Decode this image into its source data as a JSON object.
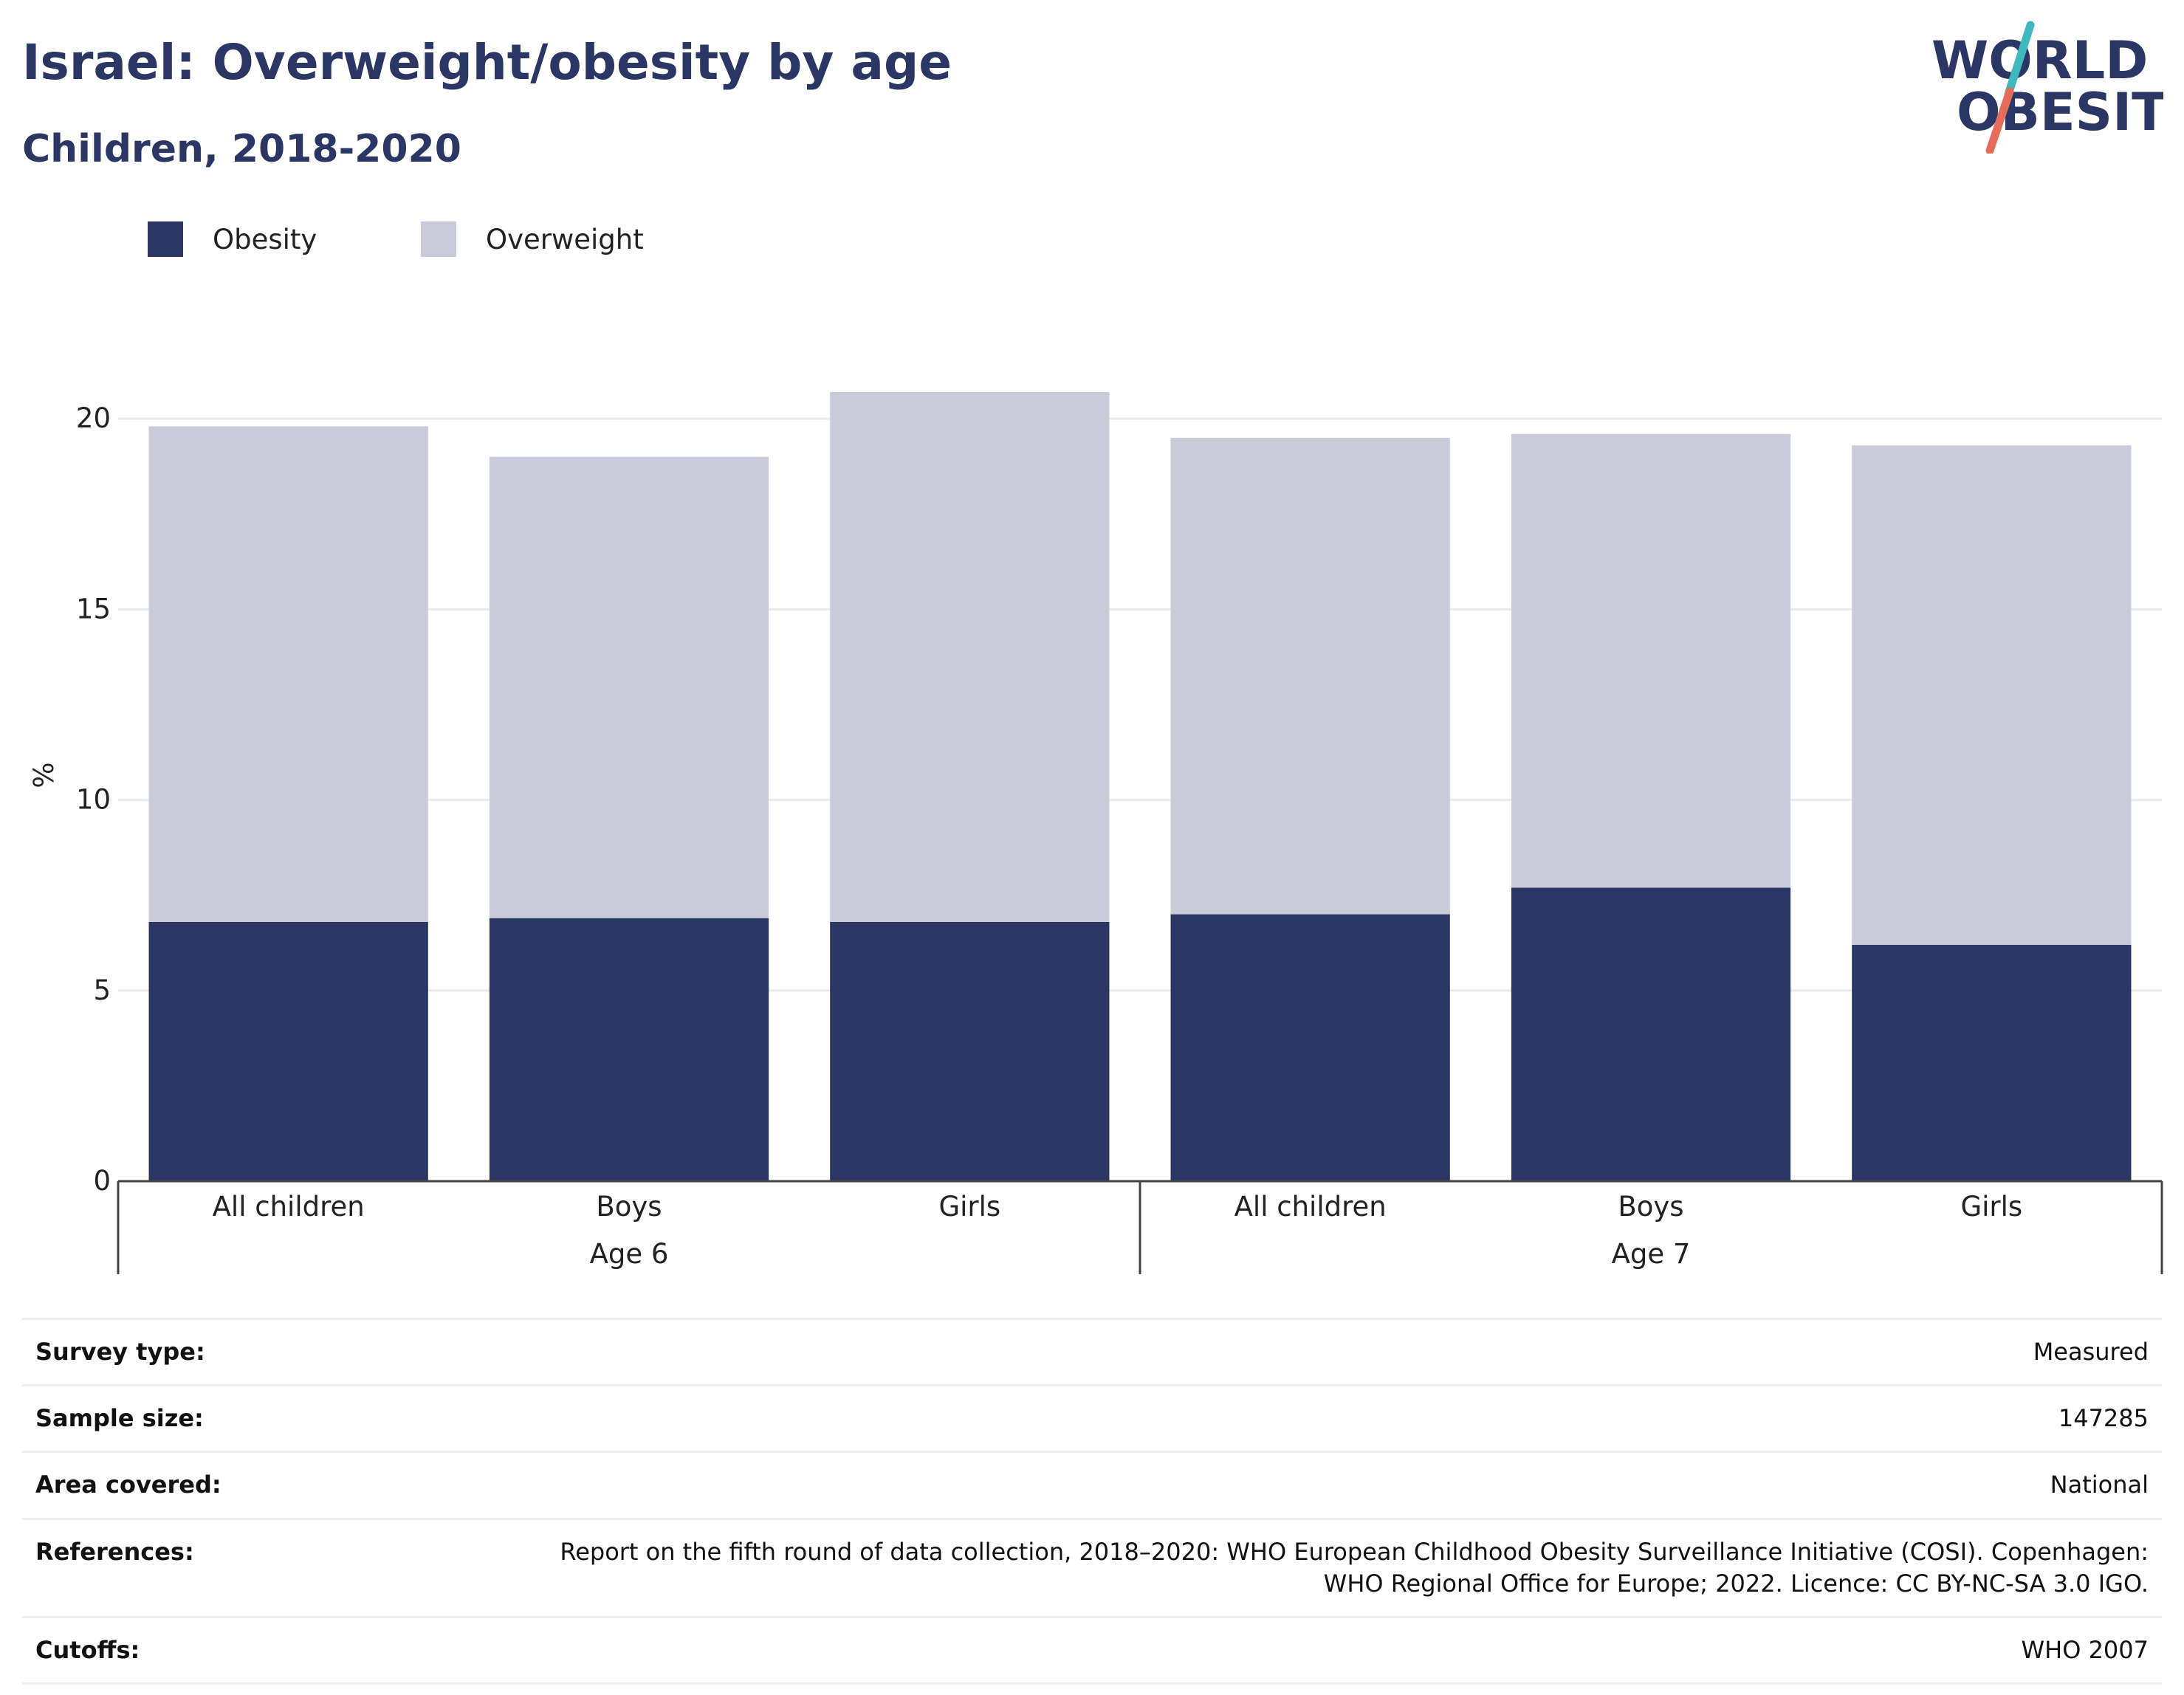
{
  "title": "Israel: Overweight/obesity by age",
  "subtitle": "Children, 2018-2020",
  "logo": {
    "line1": "WORLD",
    "line2": "OBESITY",
    "colors": {
      "text": "#2a3663",
      "slash_top": "#3fb8c0",
      "slash_bottom": "#e56b5b"
    }
  },
  "chart_data": {
    "type": "bar",
    "stacked": true,
    "ylabel": "%",
    "ylim": [
      0,
      21.3
    ],
    "yticks": [
      0,
      5,
      10,
      15,
      20
    ],
    "grid": true,
    "legend_placement": "top-left",
    "categories": [
      "All children",
      "Boys",
      "Girls",
      "All children",
      "Boys",
      "Girls"
    ],
    "groups": [
      {
        "label": "Age 6",
        "count": 3
      },
      {
        "label": "Age 7",
        "count": 3
      }
    ],
    "series": [
      {
        "name": "Obesity",
        "color": "#2a3663",
        "values": [
          6.8,
          6.9,
          6.8,
          7.0,
          7.7,
          6.2
        ]
      },
      {
        "name": "Overweight",
        "color": "#c9cbd8",
        "values": [
          13.0,
          12.1,
          13.9,
          12.5,
          11.9,
          13.1
        ]
      }
    ]
  },
  "meta": [
    {
      "key": "Survey type:",
      "value": "Measured"
    },
    {
      "key": "Sample size:",
      "value": "147285"
    },
    {
      "key": "Area covered:",
      "value": "National"
    },
    {
      "key": "References:",
      "value": "Report on the fifth round of data collection, 2018–2020: WHO European Childhood Obesity Surveillance Initiative (COSI). Copenhagen:",
      "value2": "WHO Regional Office for Europe; 2022. Licence: CC BY-NC-SA 3.0 IGO."
    },
    {
      "key": "Cutoffs:",
      "value": "WHO 2007"
    }
  ]
}
